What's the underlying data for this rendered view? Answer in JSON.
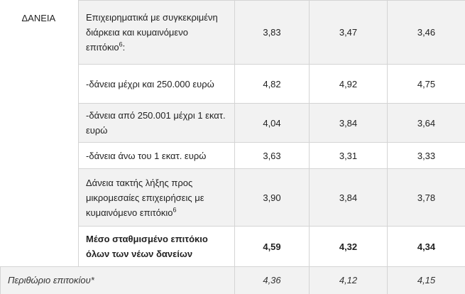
{
  "table": {
    "category": "ΔΑΝΕΙΑ",
    "rows": [
      {
        "label": "Επιχειρηματικά με συγκεκριμένη διάρκεια και κυμαινόμενο επιτόκιο",
        "note": "6",
        "suffix": ":",
        "values": [
          "3,83",
          "3,47",
          "3,46"
        ]
      },
      {
        "label": "-δάνεια μέχρι και 250.000 ευρώ",
        "values": [
          "4,82",
          "4,92",
          "4,75"
        ]
      },
      {
        "label": "-δάνεια από 250.001 μέχρι 1 εκατ. ευρώ",
        "values": [
          "4,04",
          "3,84",
          "3,64"
        ]
      },
      {
        "label": "-δάνεια άνω του 1 εκατ. ευρώ",
        "values": [
          "3,63",
          "3,31",
          "3,33"
        ]
      },
      {
        "label": "Δάνεια τακτής λήξης προς μικρομεσαίες επιχειρήσεις με κυμαινόμενο επιτόκιο",
        "note": "6",
        "values": [
          "3,90",
          "3,84",
          "3,78"
        ]
      },
      {
        "label": "Μέσο σταθμισμένο επιτόκιο όλων των νέων δανείων",
        "values": [
          "4,59",
          "4,32",
          "4,34"
        ]
      }
    ],
    "footer": {
      "label": "Περιθώριο επιτοκίου*",
      "values": [
        "4,36",
        "4,12",
        "4,15"
      ]
    }
  }
}
